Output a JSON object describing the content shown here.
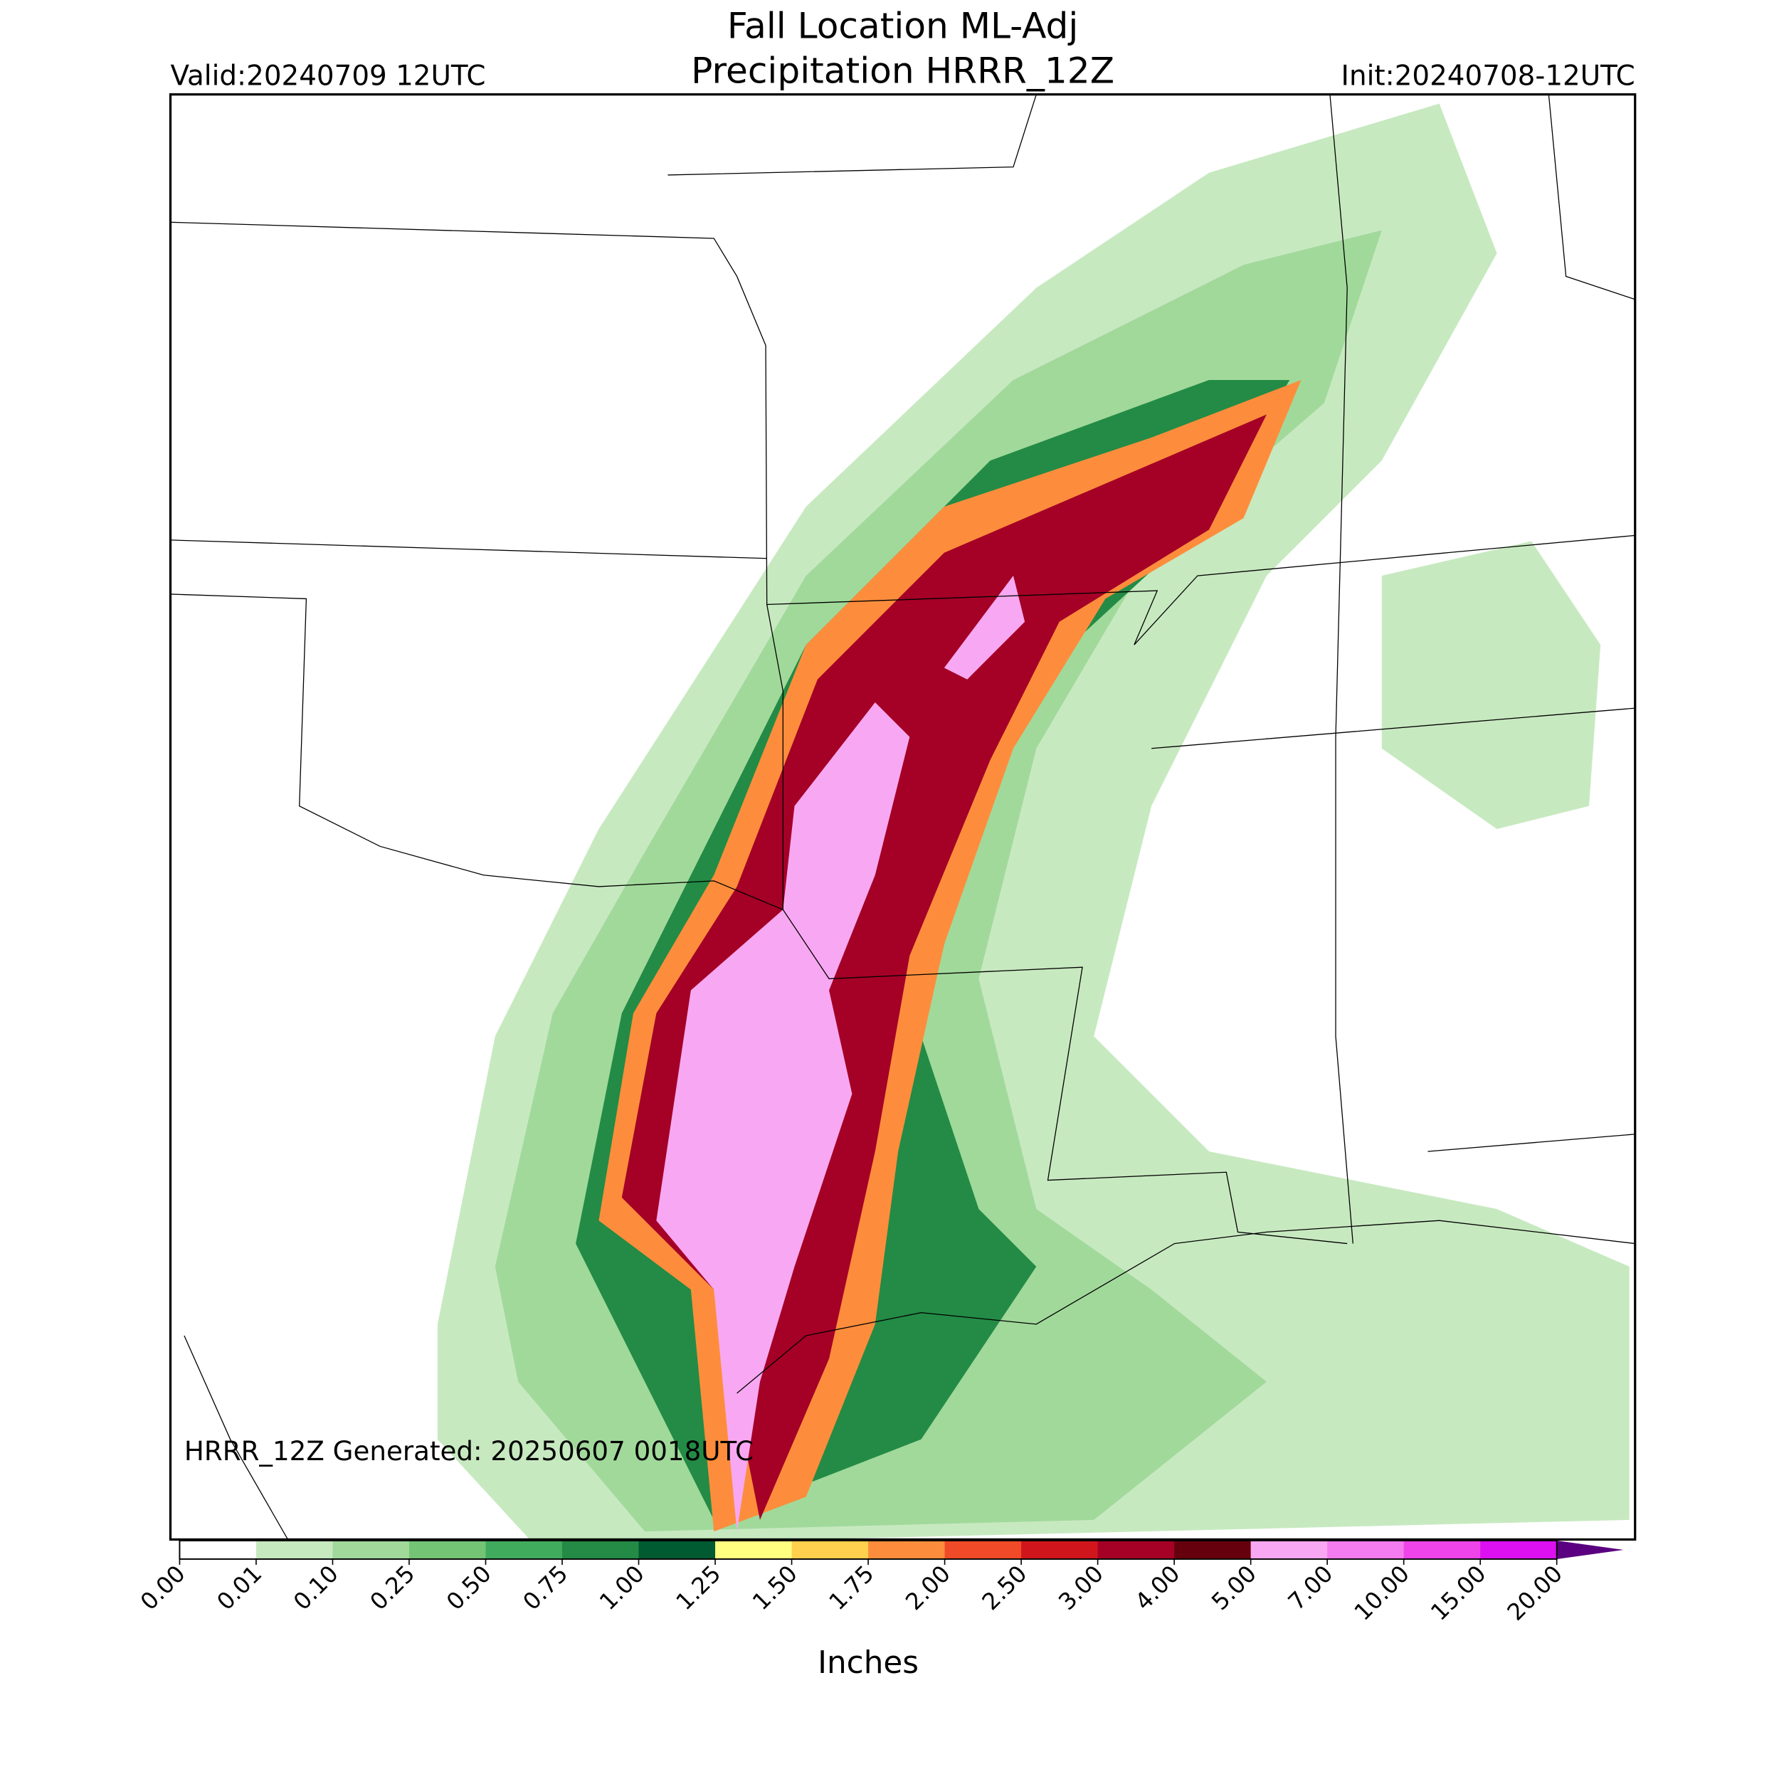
{
  "header": {
    "title": [
      "Fall Location ML-Adj",
      "Precipitation HRRR_12Z"
    ],
    "valid": "Valid:20240709 12UTC",
    "init": "Init:20240708-12UTC"
  },
  "map": {
    "note": "HRRR_12Z Generated: 20250607 0018UTC"
  },
  "colorbar": {
    "label": "Inches",
    "ticks": [
      {
        "value": 0,
        "label": "0.00"
      },
      {
        "value": 0.01,
        "label": "0.01"
      },
      {
        "value": 0.1,
        "label": "0.10"
      },
      {
        "value": 0.25,
        "label": "0.25"
      },
      {
        "value": 0.5,
        "label": "0.50"
      },
      {
        "value": 0.75,
        "label": "0.75"
      },
      {
        "value": 1,
        "label": "1.00"
      },
      {
        "value": 1.25,
        "label": "1.25"
      },
      {
        "value": 1.5,
        "label": "1.50"
      },
      {
        "value": 1.75,
        "label": "1.75"
      },
      {
        "value": 2,
        "label": "2.00"
      },
      {
        "value": 2.5,
        "label": "2.50"
      },
      {
        "value": 3,
        "label": "3.00"
      },
      {
        "value": 4,
        "label": "4.00"
      },
      {
        "value": 5,
        "label": "5.00"
      },
      {
        "value": 7,
        "label": "7.00"
      },
      {
        "value": 10,
        "label": "10.00"
      },
      {
        "value": 15,
        "label": "15.00"
      },
      {
        "value": 20,
        "label": "20.00"
      }
    ],
    "colors": [
      "#ffffff",
      "#c7e9c0",
      "#a1d99b",
      "#74c476",
      "#41ab5d",
      "#238b45",
      "#005a32",
      "#ffff80",
      "#ffd04d",
      "#fd8d3c",
      "#f04a28",
      "#d0161c",
      "#a50026",
      "#67000d",
      "#f8a8f2",
      "#f47cf0",
      "#ee44ea",
      "#dc10f0",
      "#8c00c8"
    ],
    "extend_color": "#5a0080"
  }
}
